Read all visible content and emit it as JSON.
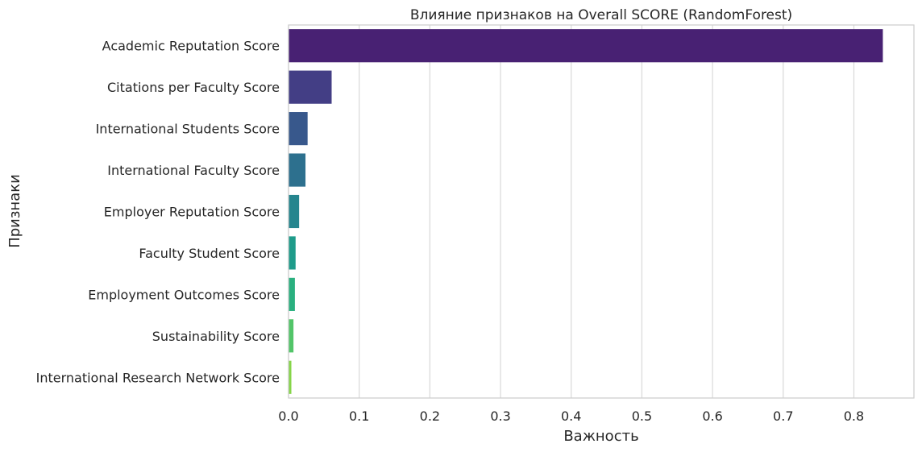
{
  "chart_data": {
    "type": "bar",
    "orientation": "horizontal",
    "title": "Влияние признаков на Overall SCORE (RandomForest)",
    "xlabel": "Важность",
    "ylabel": "Признаки",
    "categories": [
      "Academic Reputation Score",
      "Citations per Faculty Score",
      "International Students Score",
      "International Faculty Score",
      "Employer Reputation Score",
      "Faculty Student Score",
      "Employment Outcomes Score",
      "Sustainability Score",
      "International Research Network Score"
    ],
    "values": [
      0.841,
      0.061,
      0.027,
      0.024,
      0.015,
      0.01,
      0.009,
      0.007,
      0.004
    ],
    "colors": [
      "#482173",
      "#433e85",
      "#38588c",
      "#2d708e",
      "#25858e",
      "#1e9b8a",
      "#2ab07f",
      "#52c569",
      "#86d549"
    ],
    "xlim": [
      0,
      0.885
    ],
    "xticks": [
      0,
      0.1,
      0.2,
      0.3,
      0.4,
      0.5,
      0.6,
      0.7,
      0.8
    ],
    "xtick_labels": [
      "0.0",
      "0.1",
      "0.2",
      "0.3",
      "0.4",
      "0.5",
      "0.6",
      "0.7",
      "0.8"
    ],
    "grid": "x"
  }
}
